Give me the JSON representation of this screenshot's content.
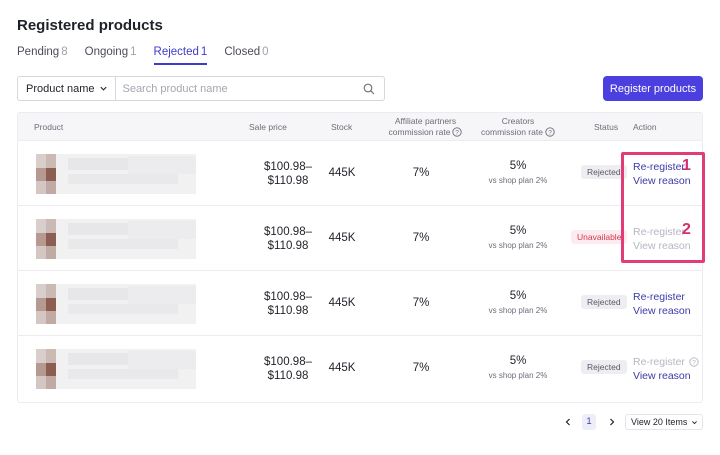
{
  "page": {
    "title": "Registered products"
  },
  "tabs": [
    {
      "label": "Pending",
      "count": "8"
    },
    {
      "label": "Ongoing",
      "count": "1"
    },
    {
      "label": "Rejected",
      "count": "1"
    },
    {
      "label": "Closed",
      "count": "0"
    }
  ],
  "search": {
    "field_select": "Product name",
    "placeholder": "Search product name"
  },
  "buttons": {
    "register": "Register products"
  },
  "table": {
    "headers": {
      "product": "Product",
      "sale_price": "Sale price",
      "stock": "Stock",
      "affiliate_line1": "Affiliate partners",
      "affiliate_line2": "commission rate",
      "creators_line1": "Creators",
      "creators_line2": "commission rate",
      "status": "Status",
      "action": "Action"
    },
    "rows": [
      {
        "price_line1": "$100.98–",
        "price_line2": "$110.98",
        "stock": "445K",
        "affiliate_rate": "7%",
        "creator_rate": "5%",
        "creator_sub": "vs shop plan 2%",
        "status": "Rejected",
        "action1": "Re-register",
        "action2": "View reason"
      },
      {
        "price_line1": "$100.98–",
        "price_line2": "$110.98",
        "stock": "445K",
        "affiliate_rate": "7%",
        "creator_rate": "5%",
        "creator_sub": "vs shop plan 2%",
        "status": "Unavailable",
        "action1": "Re-register",
        "action2": "View reason"
      },
      {
        "price_line1": "$100.98–",
        "price_line2": "$110.98",
        "stock": "445K",
        "affiliate_rate": "7%",
        "creator_rate": "5%",
        "creator_sub": "vs shop plan 2%",
        "status": "Rejected",
        "action1": "Re-register",
        "action2": "View reason"
      },
      {
        "price_line1": "$100.98–",
        "price_line2": "$110.98",
        "stock": "445K",
        "affiliate_rate": "7%",
        "creator_rate": "5%",
        "creator_sub": "vs shop plan 2%",
        "status": "Rejected",
        "action1": "Re-register",
        "action2": "View reason"
      }
    ]
  },
  "annotations": {
    "marker1": "1",
    "marker2": "2"
  },
  "pagination": {
    "current_page": "1",
    "per_page": "View 20 Items"
  },
  "colors": {
    "primary": "#4b3fe0",
    "link": "#3a3aa8",
    "highlight": "#e33a78",
    "unavailable": "#d2384f"
  }
}
